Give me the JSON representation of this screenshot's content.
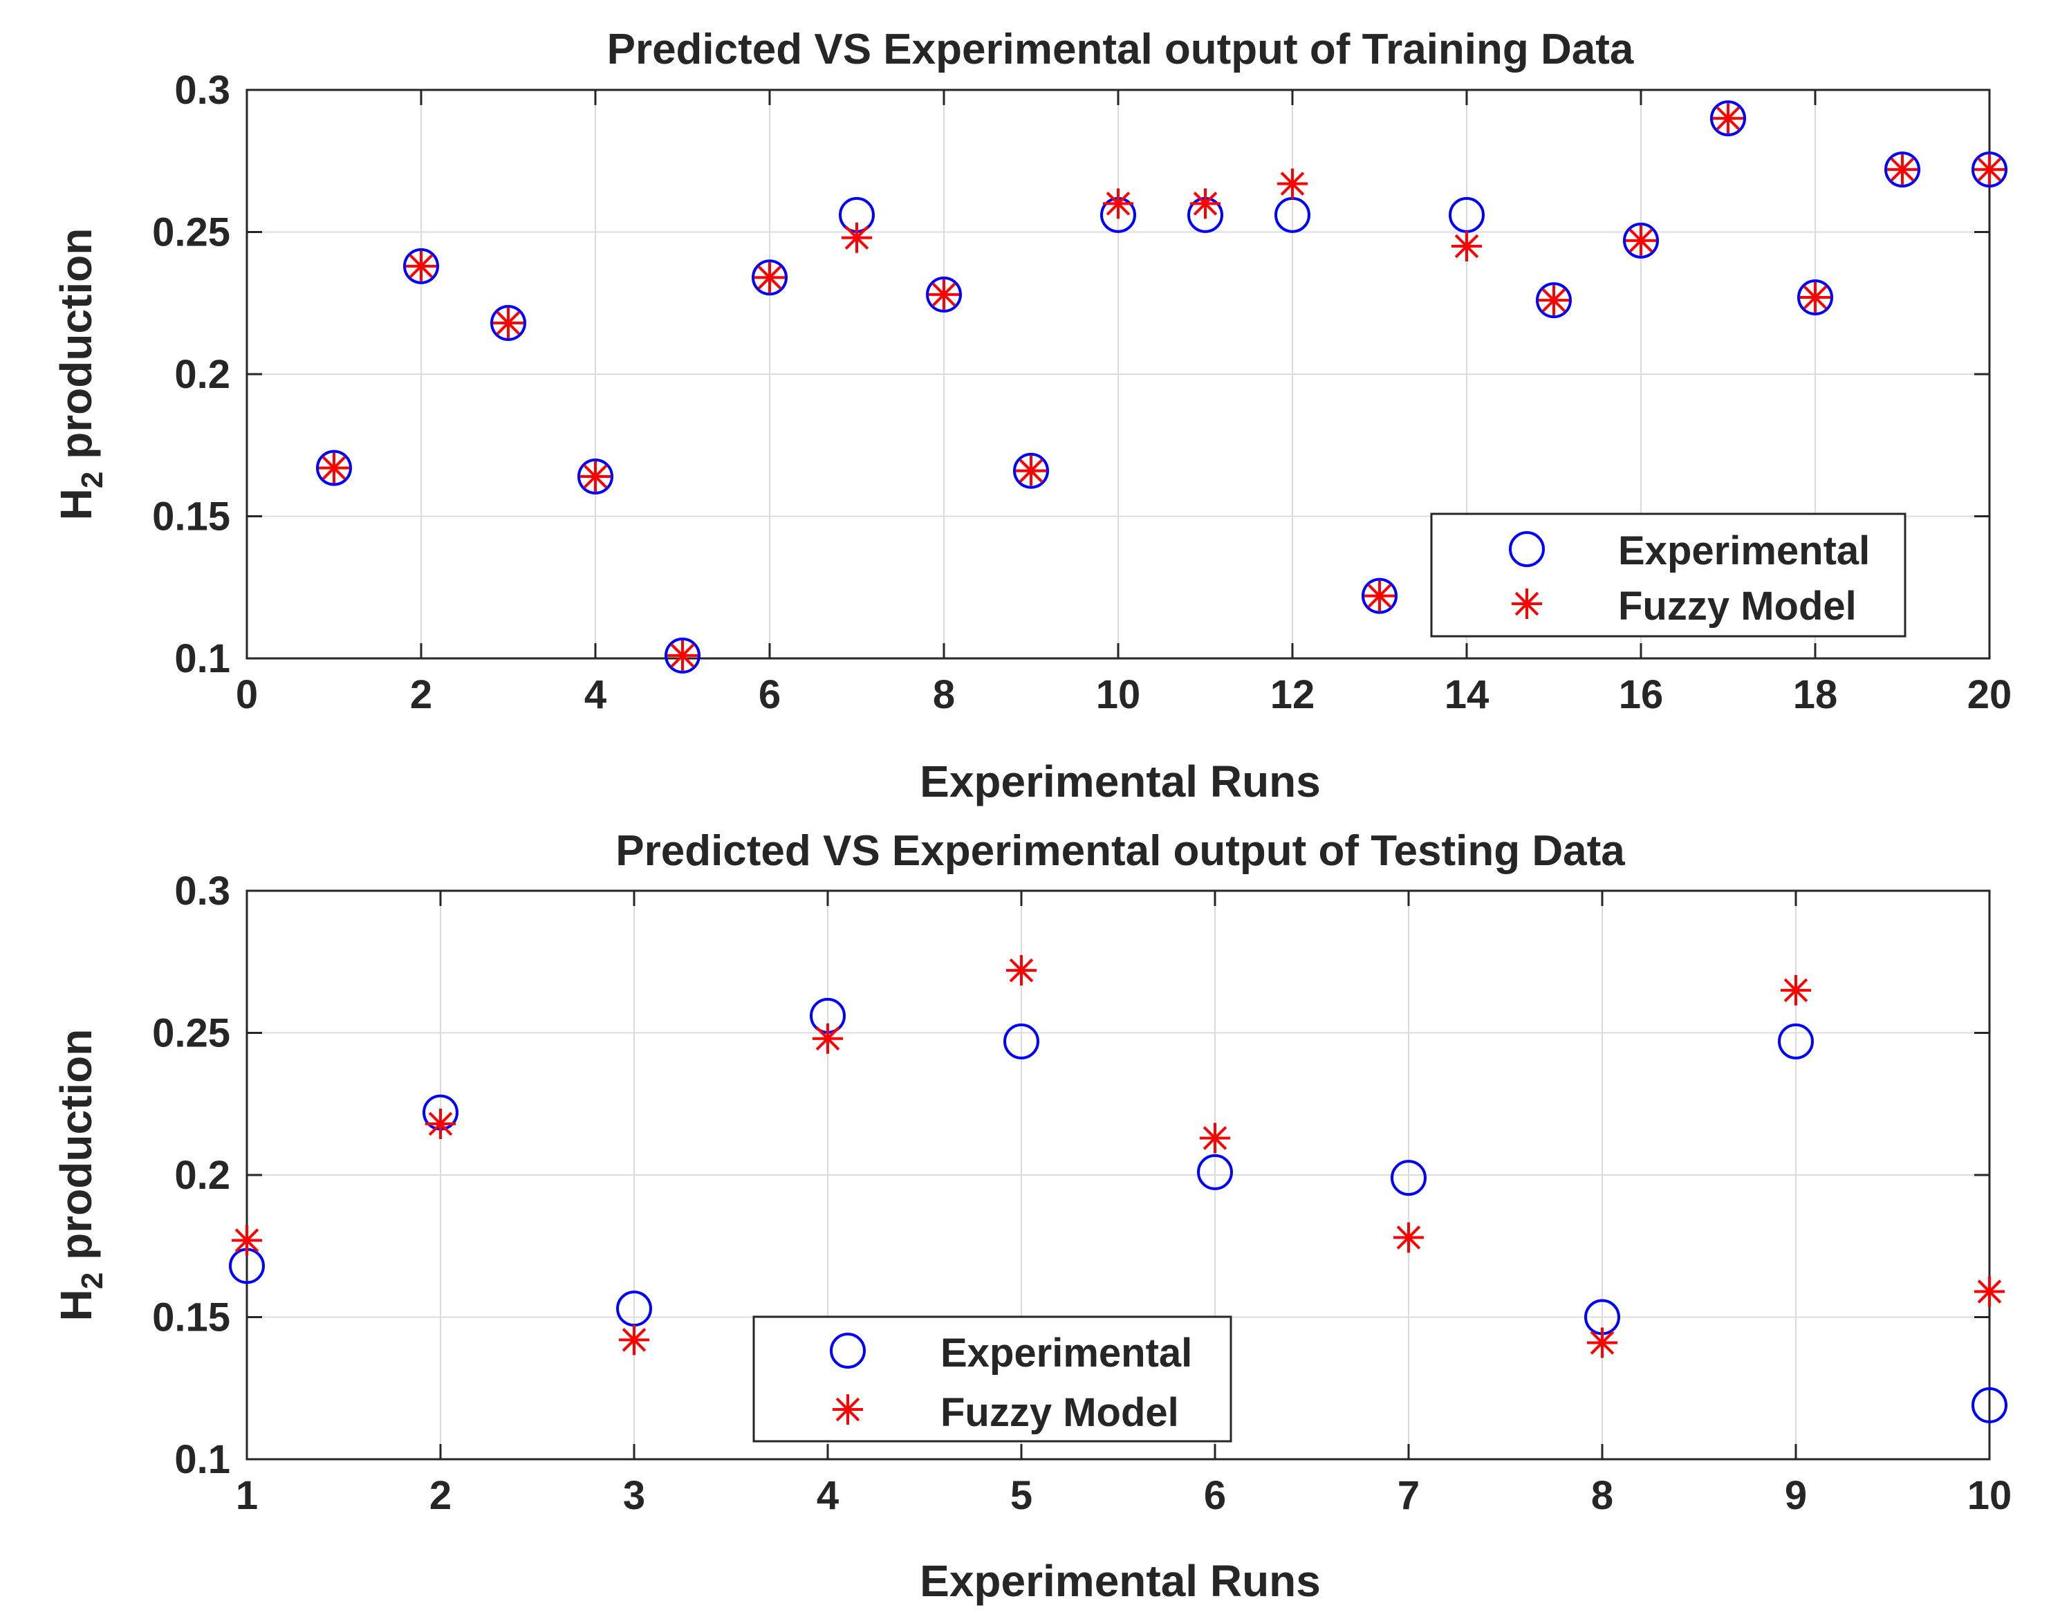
{
  "chart_data": [
    {
      "type": "scatter",
      "title": "Predicted VS Experimental output of Training Data",
      "xlabel": "Experimental Runs",
      "ylabel_main": "H",
      "ylabel_sub": "2",
      "ylabel_rest": " production",
      "xlim": [
        0,
        20
      ],
      "ylim": [
        0.1,
        0.3
      ],
      "xticks": [
        0,
        2,
        4,
        6,
        8,
        10,
        12,
        14,
        16,
        18,
        20
      ],
      "yticks": [
        0.1,
        0.15,
        0.2,
        0.25,
        0.3
      ],
      "ytick_labels": [
        "0.1",
        "0.15",
        "0.2",
        "0.25",
        "0.3"
      ],
      "grid": true,
      "legend_placement": "bottom-right",
      "colors": {
        "experimental": "#0000ff",
        "fuzzy": "#ff0000"
      },
      "series": [
        {
          "name": "Experimental",
          "marker": "circle",
          "x": [
            1,
            2,
            3,
            4,
            5,
            6,
            7,
            8,
            9,
            10,
            11,
            12,
            13,
            14,
            15,
            16,
            17,
            18,
            19,
            20
          ],
          "values": [
            0.167,
            0.238,
            0.218,
            0.164,
            0.101,
            0.234,
            0.256,
            0.228,
            0.166,
            0.256,
            0.256,
            0.256,
            0.122,
            0.256,
            0.226,
            0.247,
            0.29,
            0.227,
            0.272,
            0.272
          ]
        },
        {
          "name": "Fuzzy Model",
          "marker": "asterisk",
          "x": [
            1,
            2,
            3,
            4,
            5,
            6,
            7,
            8,
            9,
            10,
            11,
            12,
            13,
            14,
            15,
            16,
            17,
            18,
            19,
            20
          ],
          "values": [
            0.167,
            0.238,
            0.218,
            0.164,
            0.101,
            0.234,
            0.248,
            0.228,
            0.166,
            0.26,
            0.26,
            0.267,
            0.122,
            0.245,
            0.226,
            0.247,
            0.29,
            0.227,
            0.272,
            0.272
          ]
        }
      ]
    },
    {
      "type": "scatter",
      "title": "Predicted VS Experimental output of Testing Data",
      "xlabel": "Experimental Runs",
      "ylabel_main": "H",
      "ylabel_sub": "2",
      "ylabel_rest": " production",
      "xlim": [
        1,
        10
      ],
      "ylim": [
        0.1,
        0.3
      ],
      "xticks": [
        1,
        2,
        3,
        4,
        5,
        6,
        7,
        8,
        9,
        10
      ],
      "yticks": [
        0.1,
        0.15,
        0.2,
        0.25,
        0.3
      ],
      "ytick_labels": [
        "0.1",
        "0.15",
        "0.2",
        "0.25",
        "0.3"
      ],
      "grid": true,
      "legend_placement": "bottom-center",
      "colors": {
        "experimental": "#0000ff",
        "fuzzy": "#ff0000"
      },
      "series": [
        {
          "name": "Experimental",
          "marker": "circle",
          "x": [
            1,
            2,
            3,
            4,
            5,
            6,
            7,
            8,
            9,
            10
          ],
          "values": [
            0.168,
            0.222,
            0.153,
            0.256,
            0.247,
            0.201,
            0.199,
            0.15,
            0.247,
            0.119
          ]
        },
        {
          "name": "Fuzzy Model",
          "marker": "asterisk",
          "x": [
            1,
            2,
            3,
            4,
            5,
            6,
            7,
            8,
            9,
            10
          ],
          "values": [
            0.177,
            0.218,
            0.142,
            0.248,
            0.272,
            0.213,
            0.178,
            0.141,
            0.265,
            0.159
          ]
        }
      ]
    }
  ]
}
